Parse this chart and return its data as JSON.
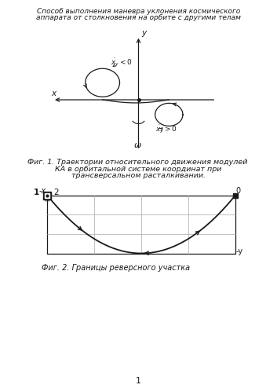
{
  "title_line1": "Способ выполнения маневра уклонения космического",
  "title_line2": "аппарата от столкновения на орбите с другими телам",
  "fig1_caption_line1": "Фиг. 1. Траектории относительного движения модулей",
  "fig1_caption_line2": "КА в орбитальной системе координат при",
  "fig1_caption_line3": "трансверсальном расталкивании.",
  "fig2_caption": "Фиг. 2. Границы реверсного участка",
  "page_number": "1",
  "bg_color": "#ffffff",
  "text_color": "#1a1a1a",
  "line_color": "#1a1a1a",
  "grid_color": "#aaaaaa"
}
